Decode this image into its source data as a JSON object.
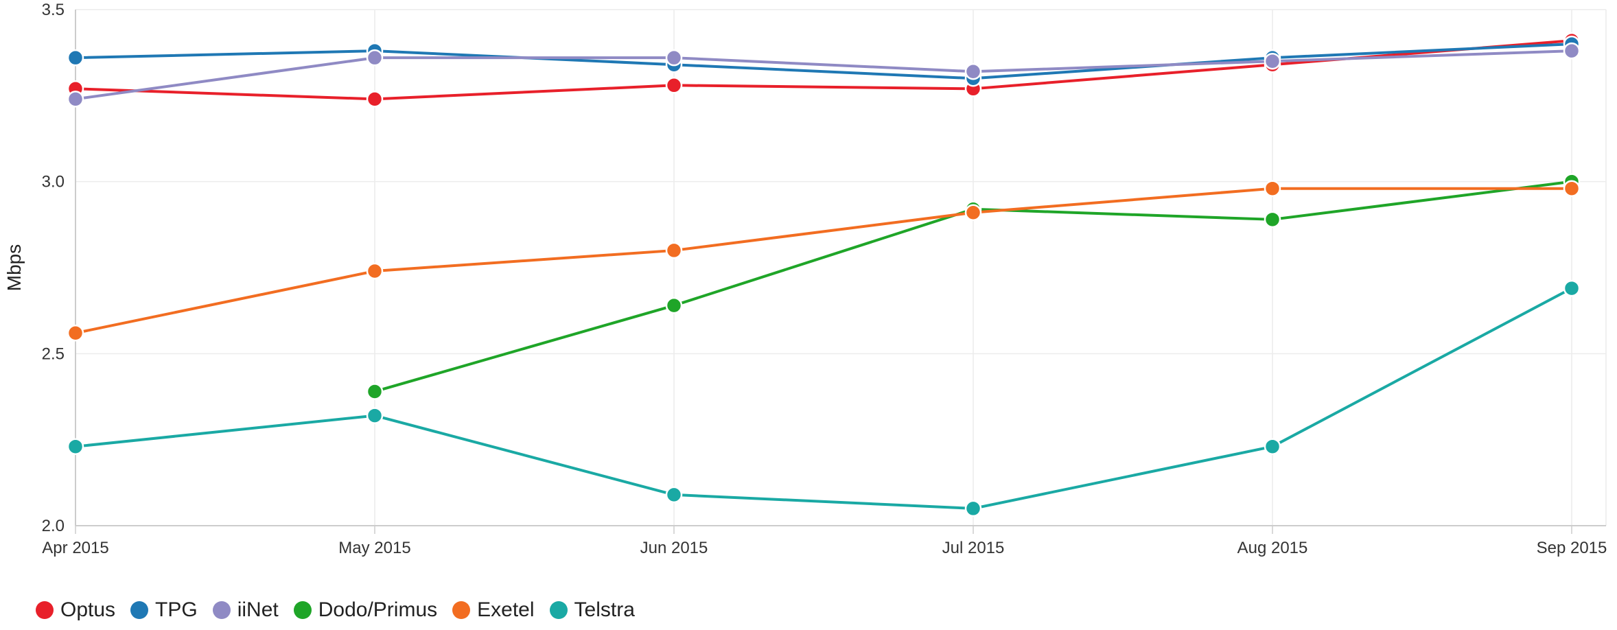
{
  "chart_data": {
    "type": "line",
    "title": "",
    "xlabel": "",
    "ylabel": "Mbps",
    "categories": [
      "Apr 2015",
      "May 2015",
      "Jun 2015",
      "Jul 2015",
      "Aug 2015",
      "Sep 2015"
    ],
    "ylim": [
      2.0,
      3.5
    ],
    "yticks": [
      "2.0",
      "2.5",
      "3.0",
      "3.5"
    ],
    "grid": true,
    "legend_position": "bottom-left",
    "series": [
      {
        "name": "Optus",
        "color": "#e8202a",
        "values": [
          3.27,
          3.24,
          3.28,
          3.27,
          3.34,
          3.41
        ]
      },
      {
        "name": "TPG",
        "color": "#1f78b4",
        "values": [
          3.36,
          3.38,
          3.34,
          3.3,
          3.36,
          3.4
        ]
      },
      {
        "name": "iiNet",
        "color": "#8f8ac4",
        "values": [
          3.24,
          3.36,
          3.36,
          3.32,
          3.35,
          3.38
        ]
      },
      {
        "name": "Dodo/Primus",
        "color": "#1fa528",
        "values": [
          null,
          2.39,
          2.64,
          2.92,
          2.89,
          3.0
        ]
      },
      {
        "name": "Exetel",
        "color": "#f26d21",
        "values": [
          2.56,
          2.74,
          2.8,
          2.91,
          2.98,
          2.98
        ]
      },
      {
        "name": "Telstra",
        "color": "#1aa9a4",
        "values": [
          2.23,
          2.32,
          2.09,
          2.05,
          2.23,
          2.69
        ]
      }
    ]
  }
}
